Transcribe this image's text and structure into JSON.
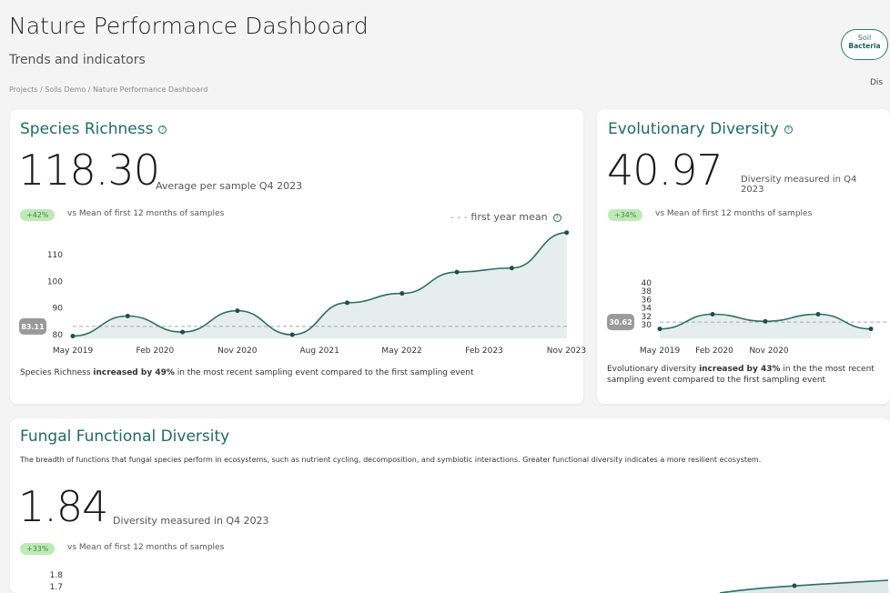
{
  "header": {
    "title": "Nature Performance Dashboard",
    "subtitle": "Trends and indicators",
    "breadcrumb": "Projects / Soils Demo / Nature Performance Dashboard",
    "toggle_top": "Soil",
    "toggle_bottom": "Bacteria",
    "right_label": "Dis"
  },
  "cards": [
    {
      "title": "Species Richness",
      "value": "118.30",
      "unit": "Average per sample Q4 2023",
      "badge": "+42%",
      "vs": "vs Mean of first 12 months of samples",
      "legend": "first year mean",
      "mean_label": "83.11",
      "foot_pre": "Species Richness ",
      "foot_bold": "increased by 49%",
      "foot_post": " in the most recent sampling event compared to the first sampling event"
    },
    {
      "title": "Evolutionary Diversity",
      "value": "40.97",
      "unit": "Diversity measured in Q4 2023",
      "badge": "+34%",
      "vs": "vs Mean of first 12 months of samples",
      "mean_label": "30.62",
      "foot_pre": "Evolutionary diversity ",
      "foot_bold": "increased by 43%",
      "foot_post": " in the the most recent sampling event compared to the first sampling event"
    },
    {
      "title": "Fungal Functional Diversity",
      "description": "The breadth of functions that fungal species perform in ecosystems, such as nutrient cycling, decomposition, and symbiotic interactions. Greater functional diversity indicates a more resilient ecosystem.",
      "value": "1.84",
      "unit": "Diversity measured in Q4 2023",
      "badge": "+33%",
      "vs": "vs Mean of first 12 months of samples"
    }
  ],
  "colors": {
    "accent": "#2d6e64",
    "badge_bg": "#bfe9b8"
  },
  "chart_data": [
    {
      "type": "area",
      "title": "Species Richness",
      "x": [
        "May 2019",
        "Nov 2019",
        "May 2020",
        "Nov 2020",
        "May 2021",
        "Nov 2021",
        "May 2022",
        "Nov 2022",
        "May 2023",
        "Nov 2023"
      ],
      "values": [
        79.5,
        87,
        81,
        89,
        80,
        92,
        95.5,
        103.5,
        105,
        118.3
      ],
      "mean": 83.11,
      "xticks": [
        "May 2019",
        "Feb 2020",
        "Nov 2020",
        "Aug 2021",
        "May 2022",
        "Feb 2023",
        "Nov 2023"
      ],
      "yticks": [
        80,
        90,
        100,
        110
      ],
      "ylim": [
        78,
        120
      ]
    },
    {
      "type": "area",
      "title": "Evolutionary Diversity",
      "x": [
        "May 2019",
        "Nov 2019",
        "May 2020",
        "Nov 2020",
        "May 2021"
      ],
      "values": [
        29,
        32.5,
        30.8,
        32.5,
        29
      ],
      "mean": 30.62,
      "xticks": [
        "May 2019",
        "Feb 2020",
        "Nov 2020"
      ],
      "yticks": [
        30,
        32,
        34,
        36,
        38,
        40
      ],
      "ylim": [
        28.5,
        40
      ]
    },
    {
      "type": "area",
      "title": "Fungal Functional Diversity",
      "yticks": [
        1.8,
        1.7
      ]
    }
  ]
}
